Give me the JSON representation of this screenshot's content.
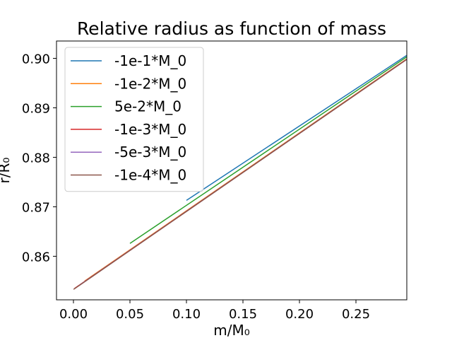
{
  "chart_data": {
    "type": "line",
    "title": "Relative radius as function of mass",
    "xlabel": "m/M₀",
    "ylabel": "r/R₀",
    "xlim": [
      -0.015,
      0.295
    ],
    "ylim": [
      0.8512,
      0.9035
    ],
    "xticks": [
      0.0,
      0.05,
      0.1,
      0.15,
      0.2,
      0.25
    ],
    "xtick_labels": [
      "0.00",
      "0.05",
      "0.10",
      "0.15",
      "0.20",
      "0.25"
    ],
    "yticks": [
      0.86,
      0.87,
      0.88,
      0.89,
      0.9
    ],
    "ytick_labels": [
      "0.86",
      "0.87",
      "0.88",
      "0.89",
      "0.90"
    ],
    "grid": false,
    "legend_position": "top-left",
    "series": [
      {
        "name": "-1e-1*M_0",
        "color": "#1f77b4",
        "x": [
          0.1,
          0.295
        ],
        "y": [
          0.8713,
          0.9006
        ]
      },
      {
        "name": "-1e-2*M_0",
        "color": "#ff7f0e",
        "x": [
          0.01,
          0.295
        ],
        "y": [
          0.855,
          0.8999
        ]
      },
      {
        "name": "5e-2*M_0",
        "color": "#2ca02c",
        "x": [
          0.05,
          0.295
        ],
        "y": [
          0.8626,
          0.9003
        ]
      },
      {
        "name": "-1e-3*M_0",
        "color": "#d62728",
        "x": [
          0.001,
          0.295
        ],
        "y": [
          0.8535,
          0.8998
        ]
      },
      {
        "name": "-5e-3*M_0",
        "color": "#9467bd",
        "x": [
          0.005,
          0.295
        ],
        "y": [
          0.8541,
          0.8998
        ]
      },
      {
        "name": "-1e-4*M_0",
        "color": "#8c564b",
        "x": [
          0.0001,
          0.295
        ],
        "y": [
          0.8533,
          0.8998
        ]
      }
    ]
  }
}
